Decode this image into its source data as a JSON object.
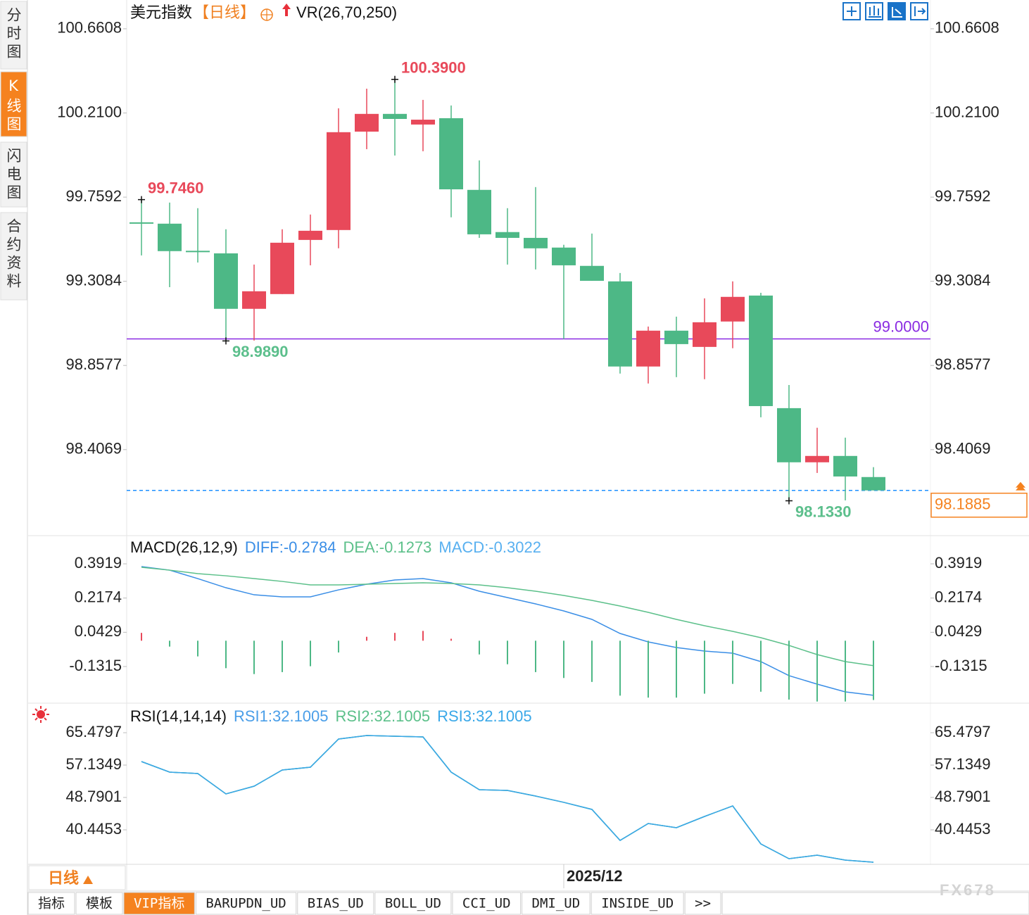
{
  "chart_data": [
    {
      "type": "candlestick",
      "title": "美元指数",
      "period": "【日线】",
      "indicator": "VR(26,70,250)",
      "categories": [
        null,
        null,
        null,
        null,
        null,
        null,
        null,
        null,
        null,
        null,
        null,
        null,
        null,
        null,
        null,
        "2025/12",
        null,
        null,
        null,
        null,
        null,
        null,
        null,
        null,
        null,
        null,
        null
      ],
      "open": [
        99.6205,
        99.617,
        99.468,
        99.458,
        99.161,
        99.24,
        99.53,
        99.583,
        100.11,
        100.205,
        100.148,
        100.182,
        99.798,
        99.572,
        99.541,
        99.489,
        99.391,
        99.308,
        98.852,
        99.044,
        98.957,
        99.093,
        99.232,
        98.629,
        98.339,
        98.373,
        98.26
      ],
      "high": [
        99.746,
        99.73,
        99.7,
        99.587,
        99.398,
        99.587,
        99.666,
        100.235,
        100.34,
        100.39,
        100.28,
        100.25,
        99.956,
        99.7,
        99.813,
        99.504,
        99.564,
        99.353,
        99.066,
        99.119,
        99.217,
        99.308,
        99.247,
        98.753,
        98.524,
        98.471,
        98.313
      ],
      "low": [
        99.447,
        99.277,
        99.409,
        98.989,
        98.991,
        99.24,
        99.394,
        99.485,
        100.016,
        99.982,
        100.005,
        99.651,
        99.541,
        99.398,
        99.372,
        98.999,
        99.311,
        98.814,
        98.761,
        98.795,
        98.784,
        98.95,
        98.58,
        98.133,
        98.282,
        98.135,
        98.1885
      ],
      "close": [
        99.6205,
        99.47,
        99.466,
        99.161,
        99.255,
        99.515,
        99.579,
        100.107,
        100.205,
        100.178,
        100.174,
        99.801,
        99.56,
        99.541,
        99.485,
        99.394,
        99.311,
        98.852,
        99.044,
        98.972,
        99.089,
        99.225,
        98.64,
        98.339,
        98.373,
        98.263,
        98.1885
      ],
      "up_color": "#e8495a",
      "down_color": "#4db886",
      "ylim": [
        97.95,
        100.815
      ],
      "yticks": [
        100.6608,
        {
          "value": 100.21,
          "label": "100.2100"
        },
        99.7592,
        99.3084,
        98.8577,
        98.4069
      ],
      "extremes": [
        {
          "value": 100.39,
          "label": "100.3900",
          "color": "#e8495a"
        },
        {
          "value": 99.746,
          "label": "99.7460",
          "color": "#e8495a"
        },
        {
          "value": 98.989,
          "label": "98.9890",
          "color": "#5cbf8c"
        },
        {
          "value": 98.133,
          "label": "98.1330",
          "color": "#5cbf8c"
        }
      ],
      "hline": {
        "value": 99,
        "label": "99.0000",
        "color": "#8a2be2"
      },
      "last_price": {
        "value": 98.1885,
        "label": "98.1885",
        "color": "#1e90ff",
        "label_color": "#f5821f"
      }
    },
    {
      "type": "macd",
      "title": "MACD(26,12,9)",
      "series": [
        {
          "name": "DIFF:-0.2784",
          "kind": "line",
          "color": "#3a8ee6",
          "values": [
            0.3776,
            0.3596,
            0.3166,
            0.27,
            0.2341,
            0.2234,
            0.2234,
            0.2592,
            0.2879,
            0.3094,
            0.3166,
            0.2951,
            0.2521,
            0.2198,
            0.1875,
            0.1517,
            0.1087,
            0.0369,
            -0.0061,
            -0.0348,
            -0.0527,
            -0.0635,
            -0.1065,
            -0.1782,
            -0.2212,
            -0.2607,
            -0.2784
          ]
        },
        {
          "name": "DEA:-0.1273",
          "kind": "line",
          "color": "#5cc08a",
          "values": [
            0.374,
            0.3596,
            0.3417,
            0.3309,
            0.3166,
            0.3022,
            0.2844,
            0.2844,
            0.2879,
            0.2915,
            0.2951,
            0.2915,
            0.2844,
            0.27,
            0.2521,
            0.2306,
            0.2055,
            0.1768,
            0.1446,
            0.1087,
            0.0764,
            0.0477,
            0.0154,
            -0.024,
            -0.0707,
            -0.1065,
            -0.1273
          ]
        },
        {
          "name": "MACD:-0.3022",
          "kind": "bar",
          "color": "#58b0f0",
          "up_color": "#e8495a",
          "down_color": "#4db886",
          "values": [
            0.04,
            -0.03,
            -0.08,
            -0.14,
            -0.17,
            -0.16,
            -0.13,
            -0.06,
            0.02,
            0.04,
            0.05,
            0.01,
            -0.07,
            -0.12,
            -0.16,
            -0.19,
            -0.21,
            -0.28,
            -0.29,
            -0.29,
            -0.27,
            -0.22,
            -0.26,
            -0.3,
            -0.31,
            -0.31,
            -0.3022
          ]
        }
      ],
      "ylim": [
        -0.311,
        0.532
      ],
      "yticks": [
        0.3919,
        0.2174,
        0.0429,
        -0.1315
      ]
    },
    {
      "type": "line",
      "title": "RSI(14,14,14)",
      "series": [
        {
          "name": "RSI1:32.1005",
          "kind": "line",
          "color": "#4a9ee8",
          "values": [
            58.04,
            55.32,
            54.96,
            49.7,
            51.69,
            55.86,
            56.59,
            63.85,
            64.75,
            64.57,
            64.39,
            55.32,
            50.78,
            50.6,
            49.15,
            47.53,
            45.71,
            37.72,
            42.08,
            40.99,
            43.89,
            46.61,
            36.82,
            33.01,
            33.91,
            32.64,
            32.1005
          ]
        },
        {
          "name": "RSI2:32.1005",
          "kind": "line",
          "color": "#5cc08a",
          "values": [
            58.04,
            55.32,
            54.96,
            49.7,
            51.69,
            55.86,
            56.59,
            63.85,
            64.75,
            64.57,
            64.39,
            55.32,
            50.78,
            50.6,
            49.15,
            47.53,
            45.71,
            37.72,
            42.08,
            40.99,
            43.89,
            46.61,
            36.82,
            33.01,
            33.91,
            32.64,
            32.1005
          ]
        },
        {
          "name": "RSI3:32.1005",
          "kind": "line",
          "color": "#3aa8e8",
          "values": [
            58.04,
            55.32,
            54.96,
            49.7,
            51.69,
            55.86,
            56.59,
            63.85,
            64.75,
            64.57,
            64.39,
            55.32,
            50.78,
            50.6,
            49.15,
            47.53,
            45.71,
            37.72,
            42.08,
            40.99,
            43.89,
            46.61,
            36.82,
            33.01,
            33.91,
            32.64,
            32.1005
          ]
        }
      ],
      "ylim": [
        31.555,
        72.918
      ],
      "yticks": [
        65.4797,
        57.1349,
        48.7901,
        40.4453
      ]
    }
  ],
  "ui": {
    "sidebar": [
      {
        "label": "分时图"
      },
      {
        "label": "K线图",
        "active": true
      },
      {
        "label": "闪电图"
      },
      {
        "label": "合约资料"
      }
    ],
    "period_button": "日线",
    "tabs": [
      {
        "label": "指标"
      },
      {
        "label": "模板"
      },
      {
        "label": "VIP指标",
        "active": true
      },
      {
        "label": "BARUPDN_UD"
      },
      {
        "label": "BIAS_UD"
      },
      {
        "label": "BOLL_UD"
      },
      {
        "label": "CCI_UD"
      },
      {
        "label": "DMI_UD"
      },
      {
        "label": "INSIDE_UD"
      },
      {
        "label": ">>"
      }
    ],
    "watermark": "FX678"
  }
}
